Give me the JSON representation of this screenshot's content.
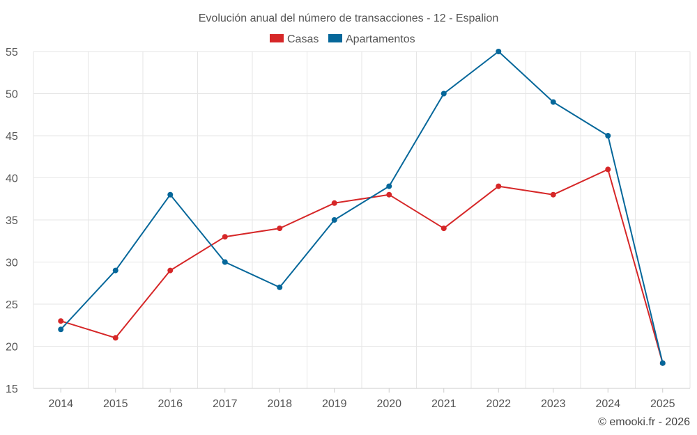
{
  "chart_data": {
    "type": "line",
    "title": "Evolución anual del número de transacciones - 12 - Espalion",
    "categories": [
      "2014",
      "2015",
      "2016",
      "2017",
      "2018",
      "2019",
      "2020",
      "2021",
      "2022",
      "2023",
      "2024",
      "2025"
    ],
    "series": [
      {
        "name": "Casas",
        "color": "#d62728",
        "values": [
          23,
          21,
          29,
          33,
          34,
          37,
          38,
          34,
          39,
          38,
          41,
          18
        ]
      },
      {
        "name": "Apartamentos",
        "color": "#05679a",
        "values": [
          22,
          29,
          38,
          30,
          27,
          35,
          39,
          50,
          55,
          49,
          45,
          18
        ]
      }
    ],
    "ylim": [
      15,
      55
    ],
    "yticks": [
      15,
      20,
      25,
      30,
      35,
      40,
      45,
      50,
      55
    ],
    "xlabel": "",
    "ylabel": "",
    "grid": true,
    "legend": "top-center"
  },
  "credit": "© emooki.fr - 2026"
}
